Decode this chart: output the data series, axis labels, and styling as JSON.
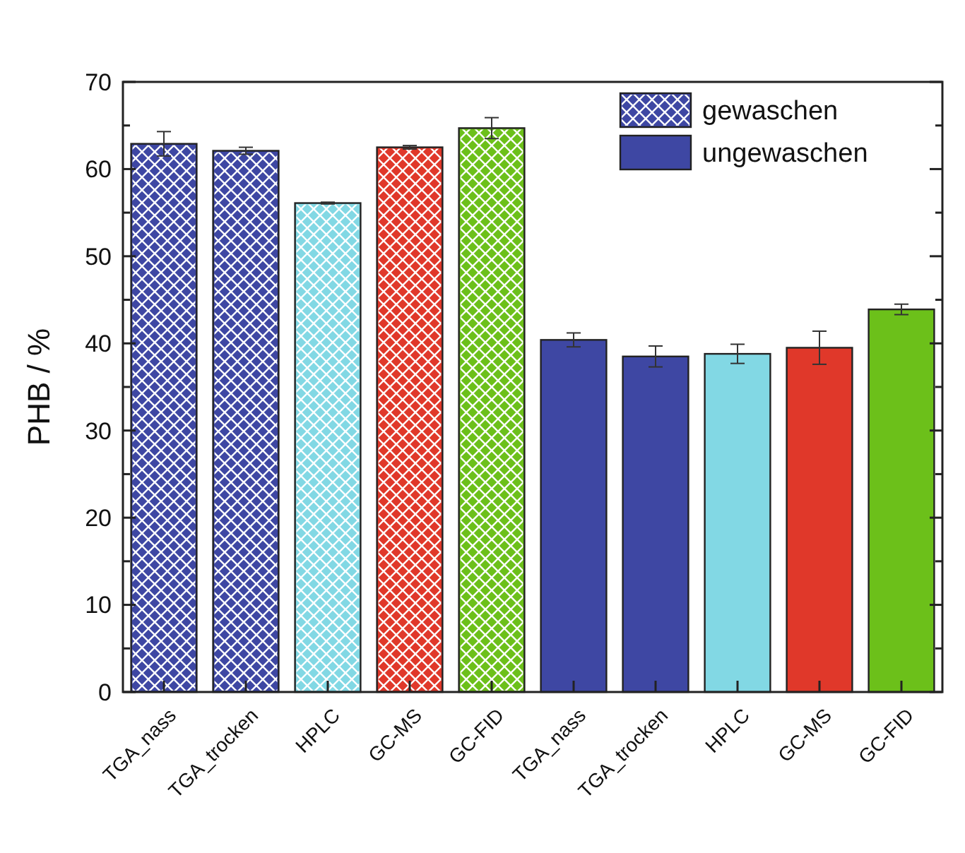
{
  "chart_data": {
    "type": "bar",
    "ylabel": "PHB / %",
    "categories": [
      "TGA_nass",
      "TGA_trocken",
      "HPLC",
      "GC-MS",
      "GC-FID",
      "TGA_nass",
      "TGA_trocken",
      "HPLC",
      "GC-MS",
      "GC-FID"
    ],
    "series": [
      {
        "name": "gewaschen",
        "color": "#3e47a3",
        "values": [
          62.9,
          62.1,
          56.1,
          62.5,
          64.7,
          null,
          null,
          null,
          null,
          null
        ],
        "errors": [
          1.4,
          0.4,
          0.1,
          0.2,
          1.2,
          null,
          null,
          null,
          null,
          null
        ],
        "colors": [
          "#3e47a3",
          "#3e47a3",
          "#82d8e4",
          "#e0382a",
          "#6cc01a",
          null,
          null,
          null,
          null,
          null
        ]
      },
      {
        "name": "ungewaschen",
        "color": "#3e47a3",
        "values": [
          null,
          null,
          null,
          null,
          null,
          40.4,
          38.5,
          38.8,
          39.5,
          43.9
        ],
        "errors": [
          null,
          null,
          null,
          null,
          null,
          0.8,
          1.2,
          1.1,
          1.9,
          0.6
        ],
        "colors": [
          null,
          null,
          null,
          null,
          null,
          "#3e47a3",
          "#3e47a3",
          "#82d8e4",
          "#e0382a",
          "#6cc01a"
        ]
      }
    ],
    "ylim": [
      0,
      70
    ],
    "yticks": [
      0,
      {
        "value": 5,
        "label": null
      },
      10,
      {
        "value": 15,
        "label": null
      },
      20,
      {
        "value": 25,
        "label": null
      },
      30,
      {
        "value": 35,
        "label": null
      },
      40,
      {
        "value": 45,
        "label": null
      },
      50,
      {
        "value": 55,
        "label": null
      },
      60,
      {
        "value": 65,
        "label": null
      },
      70
    ],
    "grid": false,
    "legend": "top right"
  }
}
